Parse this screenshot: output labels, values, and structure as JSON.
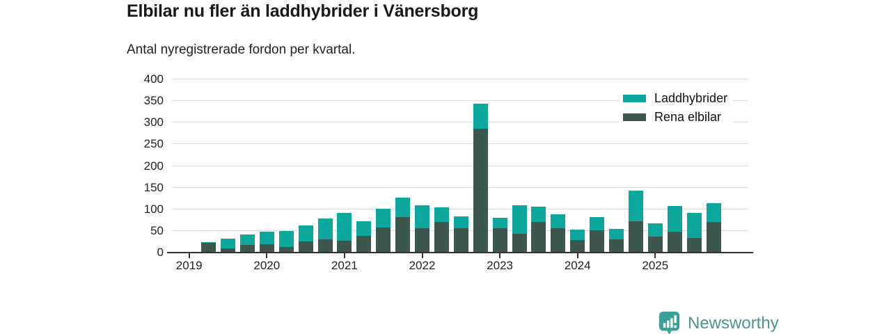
{
  "header": {
    "title": "Elbilar nu fler än laddhybrider i Vänersborg",
    "subtitle": "Antal nyregistrerade fordon per kvartal."
  },
  "colors": {
    "laddhybrider": "#0ca89e",
    "rena_elbilar": "#3d574f",
    "grid": "#dcdcdc",
    "axis": "#333333",
    "text": "#222222",
    "logo_icon": "#3ba198",
    "logo_text": "#48968e"
  },
  "legend": {
    "items": [
      {
        "label": "Laddhybrider",
        "color": "#0ca89e"
      },
      {
        "label": "Rena elbilar",
        "color": "#3d574f"
      }
    ]
  },
  "chart_data": {
    "type": "bar",
    "stacked": true,
    "title": "Elbilar nu fler än laddhybrider i Vänersborg",
    "subtitle": "Antal nyregistrerade fordon per kvartal.",
    "categories": [
      "2019-Q1",
      "2019-Q2",
      "2019-Q3",
      "2019-Q4",
      "2020-Q1",
      "2020-Q2",
      "2020-Q3",
      "2020-Q4",
      "2021-Q1",
      "2021-Q2",
      "2021-Q3",
      "2021-Q4",
      "2022-Q1",
      "2022-Q2",
      "2022-Q3",
      "2022-Q4",
      "2023-Q1",
      "2023-Q2",
      "2023-Q3",
      "2023-Q4",
      "2024-Q1",
      "2024-Q2",
      "2024-Q3",
      "2024-Q4",
      "2025-Q1",
      "2025-Q2",
      "2025-Q3"
    ],
    "series": [
      {
        "name": "Rena elbilar",
        "color": "#3d574f",
        "values": [
          23,
          10,
          18,
          19,
          13,
          25,
          30,
          27,
          39,
          58,
          82,
          57,
          70,
          57,
          286,
          56,
          44,
          70,
          57,
          29,
          52,
          30,
          72,
          37,
          48,
          34,
          70
        ]
      },
      {
        "name": "Laddhybrider",
        "color": "#0ca89e",
        "values": [
          1,
          22,
          24,
          29,
          37,
          37,
          48,
          65,
          34,
          44,
          45,
          53,
          35,
          26,
          57,
          24,
          66,
          36,
          31,
          24,
          30,
          24,
          71,
          31,
          59,
          58,
          44
        ]
      }
    ],
    "x_year_labels": [
      "2019",
      "2020",
      "2021",
      "2022",
      "2023",
      "2024",
      "2025"
    ],
    "y_ticks": [
      0,
      50,
      100,
      150,
      200,
      250,
      300,
      350,
      400
    ],
    "ylim": [
      0,
      400
    ],
    "grid": true,
    "legend_position": "top-right"
  },
  "footer": {
    "brand_label": "Newsworthy"
  }
}
